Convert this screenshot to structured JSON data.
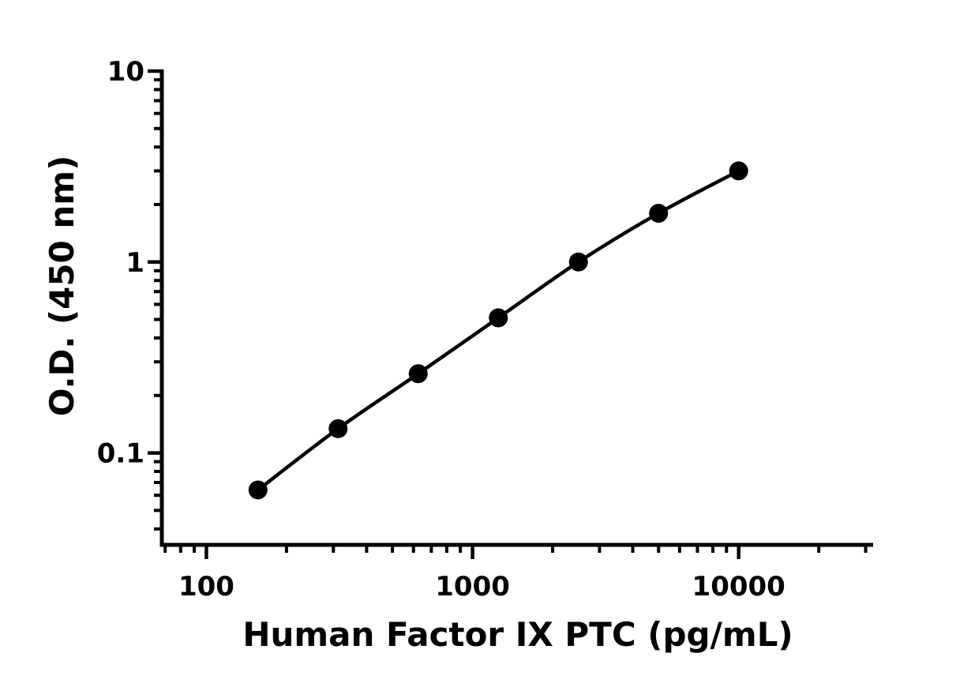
{
  "chart_data": {
    "type": "line",
    "xlabel": "Human Factor IX PTC (pg/mL)",
    "ylabel": "O.D. (450 nm)",
    "xscale": "log",
    "yscale": "log",
    "xlim": [
      68,
      32000
    ],
    "ylim": [
      0.033,
      10
    ],
    "x_ticks": [
      100,
      1000,
      10000
    ],
    "x_tick_labels": [
      "100",
      "1000",
      "10000"
    ],
    "y_ticks": [
      0.1,
      1,
      10
    ],
    "y_tick_labels": [
      "0.1",
      "1",
      "10"
    ],
    "grid": false,
    "legend": "none",
    "series": [
      {
        "color": "#000000",
        "marker": "circle",
        "x": [
          156.25,
          312.5,
          625,
          1250,
          2500,
          5000,
          10000
        ],
        "y": [
          0.064,
          0.134,
          0.26,
          0.51,
          1.0,
          1.8,
          3.0
        ]
      }
    ]
  }
}
